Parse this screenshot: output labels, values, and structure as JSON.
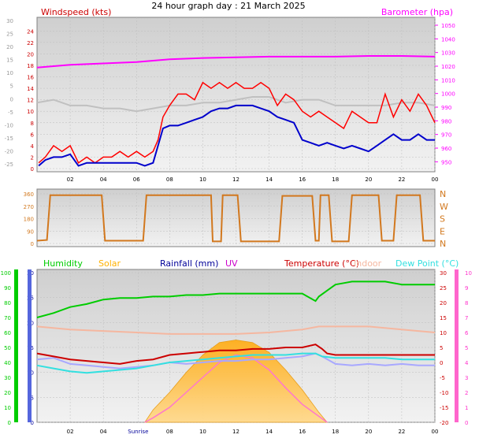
{
  "page": {
    "title": "24 hour graph day : 21 March 2025"
  },
  "colors": {
    "panel_bg": "#e8e8e8",
    "panel_top": "#cfcfcf",
    "grid": "#bdbdbd",
    "wind_gust": "#ff0000",
    "wind_avg": "#0000cc",
    "wind_dir_trend": "#c0c0c0",
    "barometer": "#ff00ff",
    "direction": "#d2781e",
    "humidity": "#00cc00",
    "solar": "#ffb100",
    "rainfall": "#000099",
    "uv": "#cc00cc",
    "temperature": "#cc0000",
    "indoor": "#f5b7a0",
    "dew_point": "#33e0e0",
    "windchill": "#a8a8ff"
  },
  "chart_data": [
    {
      "type": "line",
      "panel": "wind",
      "title": "Windspeed (kts)",
      "left_axis_label": "Windspeed (kts)",
      "right_axis_label": "Barometer (hpa)",
      "x_ticks": [
        "02",
        "04",
        "06",
        "08",
        "10",
        "12",
        "14",
        "16",
        "18",
        "20",
        "22",
        "00"
      ],
      "x_hours": [
        2,
        4,
        6,
        8,
        10,
        12,
        14,
        16,
        18,
        20,
        22,
        24
      ],
      "left_ticks_red": [
        0,
        2,
        4,
        6,
        8,
        10,
        12,
        14,
        16,
        18,
        20,
        22,
        24
      ],
      "left_ticks_gray": [
        -25,
        -20,
        -15,
        -10,
        -5,
        0,
        5,
        10,
        15,
        20,
        25,
        30
      ],
      "right_ticks": [
        950,
        960,
        970,
        980,
        990,
        1000,
        1010,
        1020,
        1030,
        1040,
        1050
      ],
      "ylim_left": [
        0,
        25
      ],
      "ylim_right": [
        945,
        1050
      ],
      "series": [
        {
          "name": "Windspeed (kts)",
          "kind": "gust",
          "x": [
            0.1,
            0.5,
            1,
            1.5,
            2,
            2.5,
            3,
            3.5,
            4,
            4.5,
            5,
            5.5,
            6,
            6.5,
            7,
            7.3,
            7.6,
            8,
            8.5,
            9,
            9.5,
            10,
            10.5,
            11,
            11.5,
            12,
            12.5,
            13,
            13.5,
            14,
            14.5,
            15,
            15.5,
            16,
            16.5,
            17,
            17.5,
            18,
            18.5,
            19,
            19.5,
            20,
            20.5,
            21,
            21.5,
            22,
            22.5,
            23,
            23.5,
            24
          ],
          "y": [
            1,
            2,
            4,
            3,
            4,
            1,
            2,
            1,
            2,
            2,
            3,
            2,
            3,
            2,
            3,
            5,
            9,
            11,
            13,
            13,
            12,
            15,
            14,
            15,
            14,
            15,
            14,
            14,
            15,
            14,
            11,
            13,
            12,
            10,
            9,
            10,
            9,
            8,
            7,
            10,
            9,
            8,
            8,
            13,
            9,
            12,
            10,
            13,
            11,
            8
          ]
        },
        {
          "name": "Windspeed (kts)",
          "kind": "average",
          "x": [
            0.1,
            0.5,
            1,
            1.5,
            2,
            2.5,
            3,
            3.5,
            4,
            4.5,
            5,
            5.5,
            6,
            6.5,
            7,
            7.3,
            7.6,
            8,
            8.5,
            9,
            9.5,
            10,
            10.5,
            11,
            11.5,
            12,
            12.5,
            13,
            13.5,
            14,
            14.5,
            15,
            15.5,
            16,
            16.5,
            17,
            17.5,
            18,
            18.5,
            19,
            19.5,
            20,
            20.5,
            21,
            21.5,
            22,
            22.5,
            23,
            23.5,
            24
          ],
          "y": [
            0.5,
            1.5,
            2,
            2,
            2.5,
            0.5,
            1,
            1,
            1,
            1,
            1,
            1,
            1,
            0.5,
            1,
            4,
            7,
            7.5,
            7.5,
            8,
            8.5,
            9,
            10,
            10.5,
            10.5,
            11,
            11,
            11,
            10.5,
            10,
            9,
            8.5,
            8,
            5,
            4.5,
            4,
            4.5,
            4,
            3.5,
            4,
            3.5,
            3,
            4,
            5,
            6,
            5,
            5,
            6,
            5,
            5
          ]
        },
        {
          "name": "Wind direction trend",
          "kind": "trend",
          "x": [
            0,
            1,
            2,
            3,
            4,
            5,
            6,
            7,
            8,
            9,
            10,
            11,
            12,
            13,
            14,
            15,
            16,
            17,
            18,
            19,
            20,
            21,
            22,
            23,
            24
          ],
          "y": [
            11.5,
            12,
            11,
            11,
            10.5,
            10.5,
            10,
            10.5,
            11,
            11,
            11.5,
            11.5,
            12,
            12.5,
            12.5,
            11.5,
            12,
            12,
            11,
            11,
            11,
            11,
            11.5,
            11.5,
            11
          ]
        },
        {
          "name": "Barometer (hpa)",
          "kind": "barometer",
          "x": [
            0,
            2,
            4,
            6,
            8,
            10,
            12,
            14,
            16,
            18,
            20,
            22,
            24
          ],
          "y": [
            1019,
            1021,
            1022,
            1023,
            1025,
            1026,
            1026.5,
            1027,
            1027,
            1027,
            1027.5,
            1027.5,
            1027
          ]
        }
      ]
    },
    {
      "type": "line",
      "panel": "direction",
      "left_ticks": [
        0,
        90,
        180,
        270,
        360
      ],
      "right_labels": [
        "N",
        "W",
        "S",
        "E",
        "N"
      ],
      "ylim": [
        0,
        360
      ],
      "series": [
        {
          "name": "Wind direction",
          "x": [
            0,
            0.6,
            0.8,
            3.9,
            4.1,
            6.4,
            6.6,
            10.5,
            10.6,
            11.1,
            11.2,
            12.1,
            12.3,
            14.6,
            14.8,
            16.6,
            16.8,
            17.0,
            17.1,
            17.6,
            17.8,
            18.8,
            19.0,
            20.6,
            20.8,
            21.5,
            21.7,
            23.1,
            23.3,
            24
          ],
          "y": [
            20,
            25,
            350,
            350,
            20,
            20,
            350,
            350,
            15,
            15,
            350,
            350,
            15,
            15,
            345,
            345,
            20,
            20,
            350,
            350,
            15,
            15,
            350,
            350,
            20,
            20,
            350,
            350,
            20,
            20
          ]
        }
      ]
    },
    {
      "type": "line",
      "panel": "climate",
      "legend": [
        "Humidity",
        "Solar",
        "Rainfall (mm)",
        "UV",
        "Temperature (°C)",
        "Indoor",
        "Dew Point (°C)"
      ],
      "x_ticks": [
        "02",
        "04",
        "Sunrise",
        "08",
        "10",
        "12",
        "14",
        "16",
        "18",
        "20",
        "22",
        "00"
      ],
      "x_hours": [
        2,
        4,
        6.1,
        8,
        10,
        12,
        14,
        16,
        18,
        20,
        22,
        24
      ],
      "humidity_ticks": [
        0,
        10,
        20,
        30,
        40,
        50,
        60,
        70,
        80,
        90,
        100
      ],
      "rain_ticks": [
        0,
        5,
        10,
        15,
        20,
        25,
        30
      ],
      "temp_ticks": [
        -20,
        -15,
        -10,
        -5,
        0,
        5,
        10,
        15,
        20,
        25,
        30
      ],
      "uv_ticks": [
        0,
        1,
        2,
        3,
        4,
        5,
        6,
        7,
        8,
        9,
        10
      ],
      "series": [
        {
          "name": "Humidity",
          "axis": "humidity",
          "x": [
            0,
            1,
            2,
            3,
            4,
            5,
            6,
            7,
            8,
            9,
            10,
            11,
            12,
            13,
            14,
            15,
            16,
            16.8,
            17,
            17.5,
            18,
            18.5,
            19,
            20,
            21,
            22,
            23,
            24
          ],
          "y": [
            70,
            73,
            77,
            79,
            82,
            83,
            83,
            84,
            84,
            85,
            85,
            86,
            86,
            86,
            86,
            86,
            86,
            81,
            84,
            88,
            92,
            93,
            94,
            94,
            94,
            92,
            92,
            92
          ]
        },
        {
          "name": "Temperature (°C)",
          "axis": "temp",
          "x": [
            0,
            1,
            2,
            3,
            4,
            5,
            6,
            7,
            8,
            9,
            10,
            11,
            12,
            13,
            14,
            15,
            16,
            16.8,
            17.2,
            17.5,
            18,
            19,
            20,
            21,
            22,
            23,
            24
          ],
          "y": [
            3,
            2,
            1,
            0.5,
            0,
            -0.5,
            0.5,
            1,
            2.5,
            3,
            3.5,
            4,
            4,
            4.5,
            4.5,
            5,
            5,
            6,
            4.5,
            3,
            2.5,
            2.5,
            2.5,
            2.5,
            2.5,
            2.5,
            2.5
          ]
        },
        {
          "name": "Indoor",
          "axis": "temp",
          "x": [
            0,
            2,
            4,
            6,
            8,
            10,
            12,
            14,
            16,
            17,
            18,
            20,
            22,
            24
          ],
          "y": [
            12,
            11,
            10.5,
            10,
            9.5,
            9.5,
            9.5,
            10,
            11,
            12,
            12,
            12,
            11,
            10
          ]
        },
        {
          "name": "Dew Point (°C)",
          "axis": "temp",
          "x": [
            0,
            1,
            2,
            3,
            4,
            5,
            6,
            7,
            8,
            9,
            10,
            11,
            12,
            13,
            14,
            15,
            16,
            16.8,
            17.2,
            18,
            19,
            20,
            21,
            22,
            23,
            24
          ],
          "y": [
            -1,
            -2,
            -3,
            -3.5,
            -3,
            -2.5,
            -2,
            -1,
            0,
            0.5,
            1,
            1.5,
            2,
            2.5,
            2.5,
            2.5,
            3,
            3,
            2,
            1.5,
            1.5,
            1.5,
            1.5,
            1,
            1,
            1
          ]
        },
        {
          "name": "Windchill",
          "axis": "temp",
          "x": [
            0,
            1,
            2,
            3,
            4,
            5,
            6,
            7,
            8,
            9,
            10,
            11,
            12,
            13,
            14,
            15,
            16,
            16.8,
            17.2,
            18,
            19,
            20,
            21,
            22,
            23,
            24
          ],
          "y": [
            1,
            1.5,
            -0.5,
            -1,
            -1.5,
            -2,
            -1.5,
            -1,
            0,
            -0.5,
            0,
            0.5,
            0.5,
            1,
            1,
            1.5,
            2,
            3,
            2,
            -0.5,
            -1,
            -0.5,
            -1,
            -0.5,
            -1,
            -1
          ]
        },
        {
          "name": "UV",
          "axis": "uv",
          "x": [
            6.5,
            7,
            8,
            9,
            10,
            11,
            12,
            13,
            14,
            15,
            16,
            17,
            17.5
          ],
          "y": [
            0,
            0.3,
            1,
            2,
            3,
            4,
            4.5,
            4.3,
            3.5,
            2.3,
            1.2,
            0.4,
            0
          ]
        },
        {
          "name": "Solar",
          "axis": "rain",
          "x": [
            6.5,
            7,
            8,
            9,
            10,
            11,
            12,
            13,
            14,
            15,
            16,
            17,
            17.5
          ],
          "y": [
            0,
            2.5,
            6,
            10,
            13.5,
            16,
            16.5,
            16,
            14,
            10.5,
            6.5,
            2,
            0
          ]
        }
      ]
    }
  ]
}
